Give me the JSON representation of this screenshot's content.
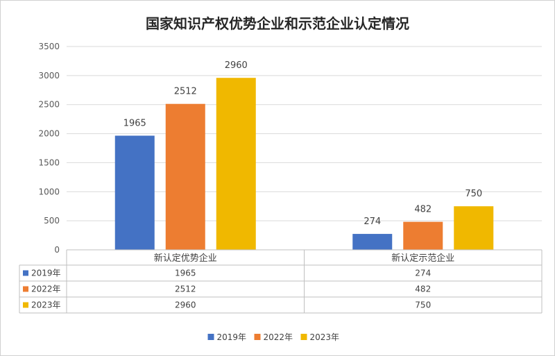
{
  "chart_data": {
    "type": "bar",
    "title": "国家知识产权优势企业和示范企业认定情况",
    "categories": [
      "新认定优势企业",
      "新认定示范企业"
    ],
    "series": [
      {
        "name": "2019年",
        "values": [
          1965,
          274
        ],
        "color": "#4472C4"
      },
      {
        "name": "2022年",
        "values": [
          2512,
          482
        ],
        "color": "#ED7D31"
      },
      {
        "name": "2023年",
        "values": [
          2960,
          750
        ],
        "color": "#F0B800"
      }
    ],
    "ylim": [
      0,
      3500
    ],
    "yticks": [
      "0",
      "500",
      "1000",
      "1500",
      "2000",
      "2500",
      "3000",
      "3500"
    ],
    "grid": true,
    "data_table": true,
    "legend": "bottom"
  }
}
